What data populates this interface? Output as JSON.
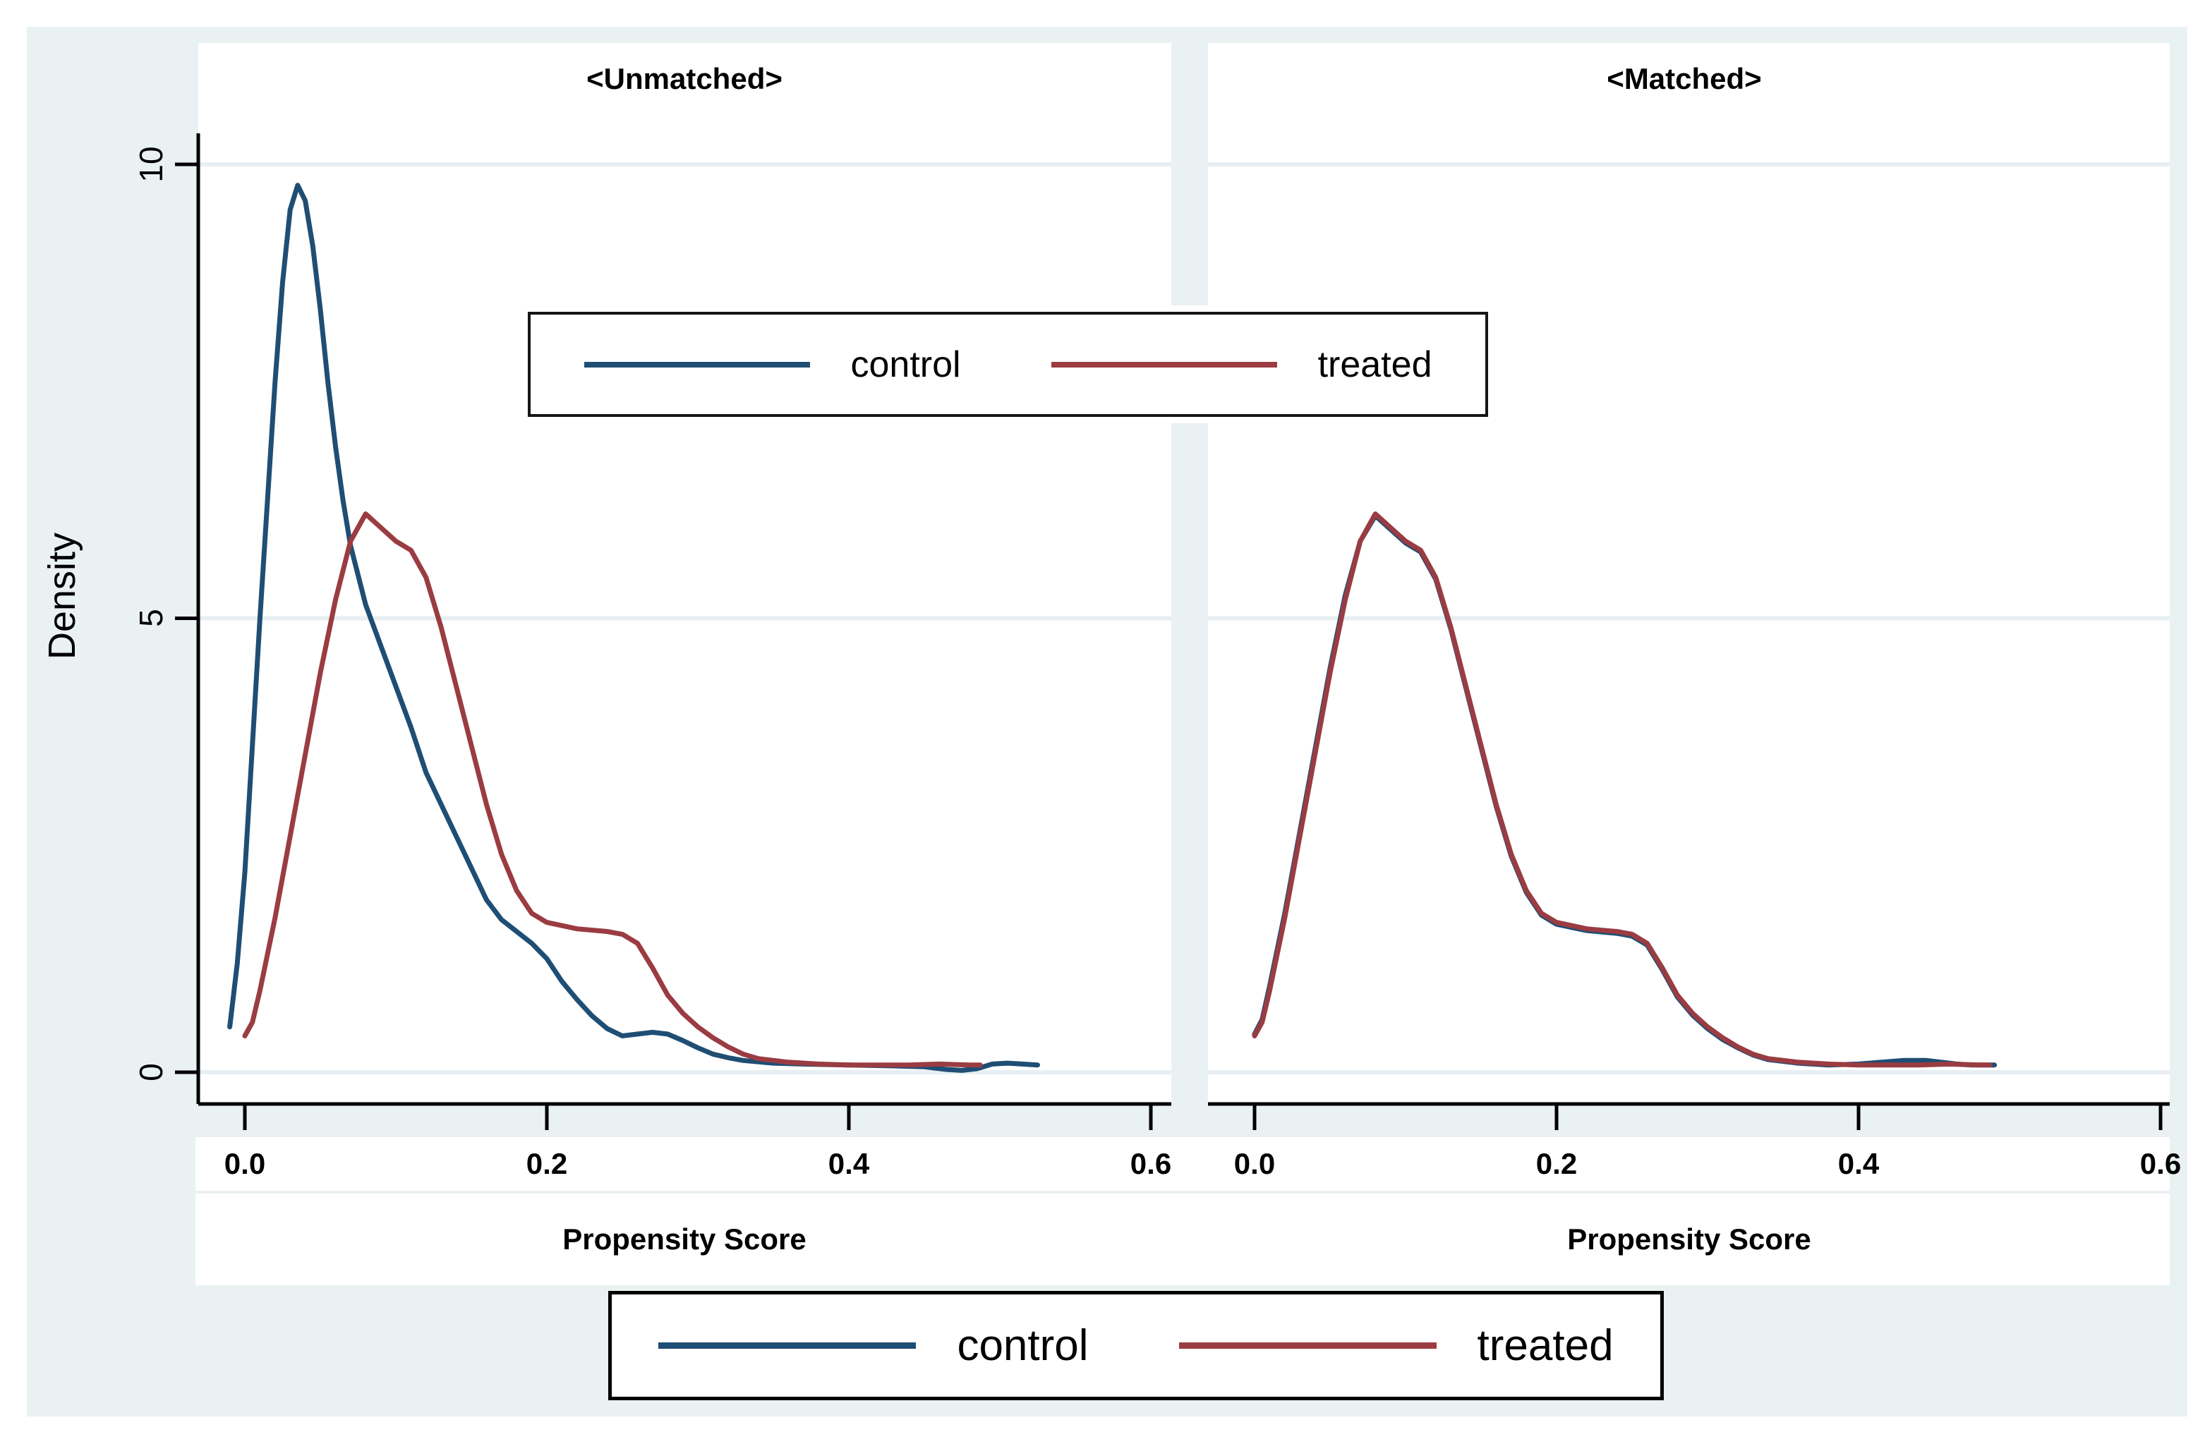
{
  "titles": {
    "unmatched": "<Unmatched>",
    "matched": "<Matched>"
  },
  "axes": {
    "ylabel": "Density",
    "xlabel": "Propensity Score",
    "yticks": [
      "10",
      "5",
      "0"
    ],
    "xticks": [
      "0.0",
      "0.2",
      "0.4",
      "0.6"
    ]
  },
  "legend": {
    "control_label": "control",
    "treated_label": "treated"
  },
  "colors": {
    "canvas": "#eaf1f3",
    "gridline": "#e7eff2",
    "control": "#1f4e74",
    "treated": "#9a3c42",
    "axis": "#000000"
  },
  "chart_data": [
    {
      "type": "line",
      "panel_title": "<Unmatched>",
      "xlabel": "Propensity Score",
      "ylabel": "Density",
      "xlim": [
        -0.03,
        0.63
      ],
      "ylim": [
        0,
        10.7
      ],
      "xticks": [
        0.0,
        0.2,
        0.4,
        0.6
      ],
      "yticks": [
        0,
        5,
        10
      ],
      "grid": "horizontal",
      "legend_position": "inside-top",
      "series": [
        {
          "name": "control",
          "color": "#1f4e74",
          "points": [
            [
              -0.01,
              0.5
            ],
            [
              -0.005,
              1.2
            ],
            [
              0.0,
              2.2
            ],
            [
              0.005,
              3.6
            ],
            [
              0.01,
              5.0
            ],
            [
              0.015,
              6.3
            ],
            [
              0.02,
              7.6
            ],
            [
              0.025,
              8.7
            ],
            [
              0.03,
              9.5
            ],
            [
              0.035,
              9.77
            ],
            [
              0.04,
              9.6
            ],
            [
              0.045,
              9.1
            ],
            [
              0.05,
              8.4
            ],
            [
              0.055,
              7.6
            ],
            [
              0.06,
              6.9
            ],
            [
              0.065,
              6.3
            ],
            [
              0.07,
              5.8
            ],
            [
              0.08,
              5.15
            ],
            [
              0.09,
              4.7
            ],
            [
              0.1,
              4.25
            ],
            [
              0.11,
              3.8
            ],
            [
              0.12,
              3.3
            ],
            [
              0.13,
              2.95
            ],
            [
              0.14,
              2.6
            ],
            [
              0.15,
              2.25
            ],
            [
              0.16,
              1.9
            ],
            [
              0.17,
              1.68
            ],
            [
              0.18,
              1.55
            ],
            [
              0.19,
              1.42
            ],
            [
              0.2,
              1.25
            ],
            [
              0.21,
              1.0
            ],
            [
              0.22,
              0.8
            ],
            [
              0.23,
              0.62
            ],
            [
              0.24,
              0.48
            ],
            [
              0.25,
              0.4
            ],
            [
              0.26,
              0.42
            ],
            [
              0.27,
              0.44
            ],
            [
              0.28,
              0.42
            ],
            [
              0.29,
              0.35
            ],
            [
              0.3,
              0.27
            ],
            [
              0.31,
              0.2
            ],
            [
              0.32,
              0.16
            ],
            [
              0.33,
              0.13
            ],
            [
              0.35,
              0.1
            ],
            [
              0.37,
              0.09
            ],
            [
              0.4,
              0.08
            ],
            [
              0.43,
              0.07
            ],
            [
              0.45,
              0.06
            ],
            [
              0.465,
              0.03
            ],
            [
              0.475,
              0.02
            ],
            [
              0.485,
              0.04
            ],
            [
              0.495,
              0.09
            ],
            [
              0.505,
              0.1
            ],
            [
              0.515,
              0.09
            ],
            [
              0.525,
              0.08
            ]
          ]
        },
        {
          "name": "treated",
          "color": "#9a3c42",
          "points": [
            [
              0.0,
              0.4
            ],
            [
              0.005,
              0.55
            ],
            [
              0.01,
              0.9
            ],
            [
              0.02,
              1.7
            ],
            [
              0.03,
              2.6
            ],
            [
              0.04,
              3.5
            ],
            [
              0.05,
              4.4
            ],
            [
              0.06,
              5.2
            ],
            [
              0.07,
              5.85
            ],
            [
              0.08,
              6.15
            ],
            [
              0.09,
              6.0
            ],
            [
              0.1,
              5.85
            ],
            [
              0.11,
              5.75
            ],
            [
              0.12,
              5.45
            ],
            [
              0.13,
              4.9
            ],
            [
              0.14,
              4.25
            ],
            [
              0.15,
              3.6
            ],
            [
              0.16,
              2.95
            ],
            [
              0.17,
              2.4
            ],
            [
              0.18,
              2.0
            ],
            [
              0.19,
              1.75
            ],
            [
              0.2,
              1.65
            ],
            [
              0.22,
              1.58
            ],
            [
              0.24,
              1.55
            ],
            [
              0.25,
              1.52
            ],
            [
              0.26,
              1.42
            ],
            [
              0.27,
              1.15
            ],
            [
              0.28,
              0.85
            ],
            [
              0.29,
              0.65
            ],
            [
              0.3,
              0.5
            ],
            [
              0.31,
              0.38
            ],
            [
              0.32,
              0.28
            ],
            [
              0.33,
              0.2
            ],
            [
              0.34,
              0.15
            ],
            [
              0.36,
              0.11
            ],
            [
              0.38,
              0.09
            ],
            [
              0.4,
              0.08
            ],
            [
              0.42,
              0.08
            ],
            [
              0.44,
              0.08
            ],
            [
              0.46,
              0.09
            ],
            [
              0.48,
              0.08
            ],
            [
              0.487,
              0.08
            ]
          ]
        }
      ]
    },
    {
      "type": "line",
      "panel_title": "<Matched>",
      "xlabel": "Propensity Score",
      "ylabel": "Density",
      "xlim": [
        -0.03,
        0.63
      ],
      "ylim": [
        0,
        10.7
      ],
      "xticks": [
        0.0,
        0.2,
        0.4,
        0.6
      ],
      "yticks": [
        0,
        5,
        10
      ],
      "grid": "horizontal",
      "series": [
        {
          "name": "control",
          "color": "#1f4e74",
          "points": [
            [
              0.0,
              0.42
            ],
            [
              0.005,
              0.58
            ],
            [
              0.01,
              0.95
            ],
            [
              0.02,
              1.75
            ],
            [
              0.03,
              2.65
            ],
            [
              0.04,
              3.55
            ],
            [
              0.05,
              4.45
            ],
            [
              0.06,
              5.25
            ],
            [
              0.07,
              5.85
            ],
            [
              0.08,
              6.13
            ],
            [
              0.09,
              5.98
            ],
            [
              0.1,
              5.83
            ],
            [
              0.11,
              5.73
            ],
            [
              0.12,
              5.43
            ],
            [
              0.13,
              4.88
            ],
            [
              0.14,
              4.23
            ],
            [
              0.15,
              3.58
            ],
            [
              0.16,
              2.93
            ],
            [
              0.17,
              2.38
            ],
            [
              0.18,
              1.98
            ],
            [
              0.19,
              1.73
            ],
            [
              0.2,
              1.63
            ],
            [
              0.22,
              1.56
            ],
            [
              0.24,
              1.53
            ],
            [
              0.25,
              1.5
            ],
            [
              0.26,
              1.4
            ],
            [
              0.27,
              1.13
            ],
            [
              0.28,
              0.83
            ],
            [
              0.29,
              0.63
            ],
            [
              0.3,
              0.48
            ],
            [
              0.31,
              0.36
            ],
            [
              0.32,
              0.27
            ],
            [
              0.33,
              0.19
            ],
            [
              0.34,
              0.14
            ],
            [
              0.36,
              0.1
            ],
            [
              0.38,
              0.08
            ],
            [
              0.4,
              0.09
            ],
            [
              0.415,
              0.11
            ],
            [
              0.43,
              0.13
            ],
            [
              0.445,
              0.13
            ],
            [
              0.455,
              0.11
            ],
            [
              0.465,
              0.09
            ],
            [
              0.475,
              0.08
            ],
            [
              0.49,
              0.08
            ]
          ]
        },
        {
          "name": "treated",
          "color": "#9a3c42",
          "points": [
            [
              0.0,
              0.4
            ],
            [
              0.005,
              0.55
            ],
            [
              0.01,
              0.9
            ],
            [
              0.02,
              1.7
            ],
            [
              0.03,
              2.6
            ],
            [
              0.04,
              3.5
            ],
            [
              0.05,
              4.4
            ],
            [
              0.06,
              5.2
            ],
            [
              0.07,
              5.85
            ],
            [
              0.08,
              6.15
            ],
            [
              0.09,
              6.0
            ],
            [
              0.1,
              5.85
            ],
            [
              0.11,
              5.75
            ],
            [
              0.12,
              5.45
            ],
            [
              0.13,
              4.9
            ],
            [
              0.14,
              4.25
            ],
            [
              0.15,
              3.6
            ],
            [
              0.16,
              2.95
            ],
            [
              0.17,
              2.4
            ],
            [
              0.18,
              2.0
            ],
            [
              0.19,
              1.75
            ],
            [
              0.2,
              1.65
            ],
            [
              0.22,
              1.58
            ],
            [
              0.24,
              1.55
            ],
            [
              0.25,
              1.52
            ],
            [
              0.26,
              1.42
            ],
            [
              0.27,
              1.15
            ],
            [
              0.28,
              0.85
            ],
            [
              0.29,
              0.65
            ],
            [
              0.3,
              0.5
            ],
            [
              0.31,
              0.38
            ],
            [
              0.32,
              0.28
            ],
            [
              0.33,
              0.2
            ],
            [
              0.34,
              0.15
            ],
            [
              0.36,
              0.11
            ],
            [
              0.38,
              0.09
            ],
            [
              0.4,
              0.08
            ],
            [
              0.42,
              0.08
            ],
            [
              0.44,
              0.08
            ],
            [
              0.46,
              0.09
            ],
            [
              0.48,
              0.08
            ],
            [
              0.487,
              0.08
            ]
          ]
        }
      ]
    }
  ]
}
